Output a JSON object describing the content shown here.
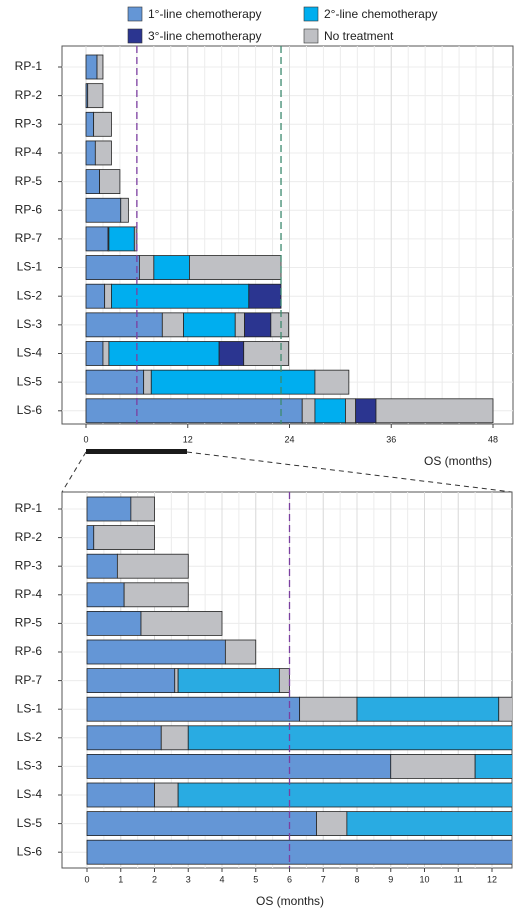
{
  "chart_data": [
    {
      "type": "swimmer",
      "xlabel": "OS (months)",
      "series": [
        {
          "name": "1°-line chemotherapy",
          "color": "#6496d6"
        },
        {
          "name": "2°-line chemotherapy",
          "color": "#00aeef"
        },
        {
          "name": "3°-line chemotherapy",
          "color": "#2b3590"
        },
        {
          "name": "No treatment",
          "color": "#bfc0c4"
        }
      ],
      "categories": [
        "RP-1",
        "RP-2",
        "RP-3",
        "RP-4",
        "RP-5",
        "RP-6",
        "RP-7",
        "LS-1",
        "LS-2",
        "LS-3",
        "LS-4",
        "LS-5",
        "LS-6"
      ],
      "segments": [
        [
          {
            "s": 0,
            "v": 1.3
          },
          {
            "s": 3,
            "v": 0.7
          }
        ],
        [
          {
            "s": 0,
            "v": 0.2
          },
          {
            "s": 3,
            "v": 1.8
          }
        ],
        [
          {
            "s": 0,
            "v": 0.9
          },
          {
            "s": 3,
            "v": 2.1
          }
        ],
        [
          {
            "s": 0,
            "v": 1.1
          },
          {
            "s": 3,
            "v": 1.9
          }
        ],
        [
          {
            "s": 0,
            "v": 1.6
          },
          {
            "s": 3,
            "v": 2.4
          }
        ],
        [
          {
            "s": 0,
            "v": 4.1
          },
          {
            "s": 3,
            "v": 0.9
          }
        ],
        [
          {
            "s": 0,
            "v": 2.6
          },
          {
            "s": 3,
            "v": 0.1
          },
          {
            "s": 1,
            "v": 3.0
          },
          {
            "s": 3,
            "v": 0.3
          }
        ],
        [
          {
            "s": 0,
            "v": 6.3
          },
          {
            "s": 3,
            "v": 1.7
          },
          {
            "s": 1,
            "v": 4.2
          },
          {
            "s": 3,
            "v": 10.8
          }
        ],
        [
          {
            "s": 0,
            "v": 2.2
          },
          {
            "s": 3,
            "v": 0.8
          },
          {
            "s": 1,
            "v": 16.2
          },
          {
            "s": 2,
            "v": 3.8
          }
        ],
        [
          {
            "s": 0,
            "v": 9.0
          },
          {
            "s": 3,
            "v": 2.5
          },
          {
            "s": 1,
            "v": 6.1
          },
          {
            "s": 3,
            "v": 1.1
          },
          {
            "s": 2,
            "v": 3.1
          },
          {
            "s": 3,
            "v": 2.1
          }
        ],
        [
          {
            "s": 0,
            "v": 2.0
          },
          {
            "s": 3,
            "v": 0.7
          },
          {
            "s": 1,
            "v": 13.0
          },
          {
            "s": 2,
            "v": 2.9
          },
          {
            "s": 3,
            "v": 5.3
          }
        ],
        [
          {
            "s": 0,
            "v": 6.8
          },
          {
            "s": 3,
            "v": 0.9
          },
          {
            "s": 1,
            "v": 19.3
          },
          {
            "s": 3,
            "v": 4.0
          }
        ],
        [
          {
            "s": 0,
            "v": 25.5
          },
          {
            "s": 3,
            "v": 1.5
          },
          {
            "s": 1,
            "v": 3.6
          },
          {
            "s": 3,
            "v": 1.2
          },
          {
            "s": 2,
            "v": 2.4
          },
          {
            "s": 3,
            "v": 13.8
          }
        ]
      ],
      "xlim": [
        0,
        48
      ],
      "xticks": [
        0,
        12,
        24,
        36,
        48
      ],
      "minor_grid_step": 2,
      "reference_lines": [
        {
          "value": 6,
          "color": "#7b3fa0"
        },
        {
          "value": 23,
          "color": "#3d8a6e"
        }
      ]
    },
    {
      "type": "swimmer",
      "xlabel": "OS (months)",
      "colors": [
        "#6496d6",
        "#29abe2",
        "#2b3590",
        "#bfc0c4"
      ],
      "categories": [
        "RP-1",
        "RP-2",
        "RP-3",
        "RP-4",
        "RP-5",
        "RP-6",
        "RP-7",
        "LS-1",
        "LS-2",
        "LS-3",
        "LS-4",
        "LS-5",
        "LS-6"
      ],
      "segments": [
        [
          {
            "s": 0,
            "v": 1.3
          },
          {
            "s": 3,
            "v": 0.7
          }
        ],
        [
          {
            "s": 0,
            "v": 0.2
          },
          {
            "s": 3,
            "v": 1.8
          }
        ],
        [
          {
            "s": 0,
            "v": 0.9
          },
          {
            "s": 3,
            "v": 2.1
          }
        ],
        [
          {
            "s": 0,
            "v": 1.1
          },
          {
            "s": 3,
            "v": 1.9
          }
        ],
        [
          {
            "s": 0,
            "v": 1.6
          },
          {
            "s": 3,
            "v": 2.4
          }
        ],
        [
          {
            "s": 0,
            "v": 4.1
          },
          {
            "s": 3,
            "v": 0.9
          }
        ],
        [
          {
            "s": 0,
            "v": 2.6
          },
          {
            "s": 3,
            "v": 0.1
          },
          {
            "s": 1,
            "v": 3.0
          },
          {
            "s": 3,
            "v": 0.3
          }
        ],
        [
          {
            "s": 0,
            "v": 6.3
          },
          {
            "s": 3,
            "v": 1.7
          },
          {
            "s": 1,
            "v": 4.2
          },
          {
            "s": 3,
            "v": 10.8
          }
        ],
        [
          {
            "s": 0,
            "v": 2.2
          },
          {
            "s": 3,
            "v": 0.8
          },
          {
            "s": 1,
            "v": 16.2
          },
          {
            "s": 2,
            "v": 3.8
          }
        ],
        [
          {
            "s": 0,
            "v": 9.0
          },
          {
            "s": 3,
            "v": 2.5
          },
          {
            "s": 1,
            "v": 6.1
          },
          {
            "s": 3,
            "v": 1.1
          },
          {
            "s": 2,
            "v": 3.1
          },
          {
            "s": 3,
            "v": 2.1
          }
        ],
        [
          {
            "s": 0,
            "v": 2.0
          },
          {
            "s": 3,
            "v": 0.7
          },
          {
            "s": 1,
            "v": 13.0
          },
          {
            "s": 2,
            "v": 2.9
          },
          {
            "s": 3,
            "v": 5.3
          }
        ],
        [
          {
            "s": 0,
            "v": 6.8
          },
          {
            "s": 3,
            "v": 0.9
          },
          {
            "s": 1,
            "v": 19.3
          },
          {
            "s": 3,
            "v": 4.0
          }
        ],
        [
          {
            "s": 0,
            "v": 25.5
          },
          {
            "s": 3,
            "v": 1.5
          },
          {
            "s": 1,
            "v": 3.6
          },
          {
            "s": 3,
            "v": 1.2
          },
          {
            "s": 2,
            "v": 2.4
          },
          {
            "s": 3,
            "v": 13.8
          }
        ]
      ],
      "xlim": [
        0,
        12
      ],
      "xticks": [
        0,
        1,
        2,
        3,
        4,
        5,
        6,
        7,
        8,
        9,
        10,
        11,
        12
      ],
      "minor_grid_step": 0.5,
      "reference_lines": [
        {
          "value": 6,
          "color": "#7b3fa0"
        }
      ]
    }
  ]
}
